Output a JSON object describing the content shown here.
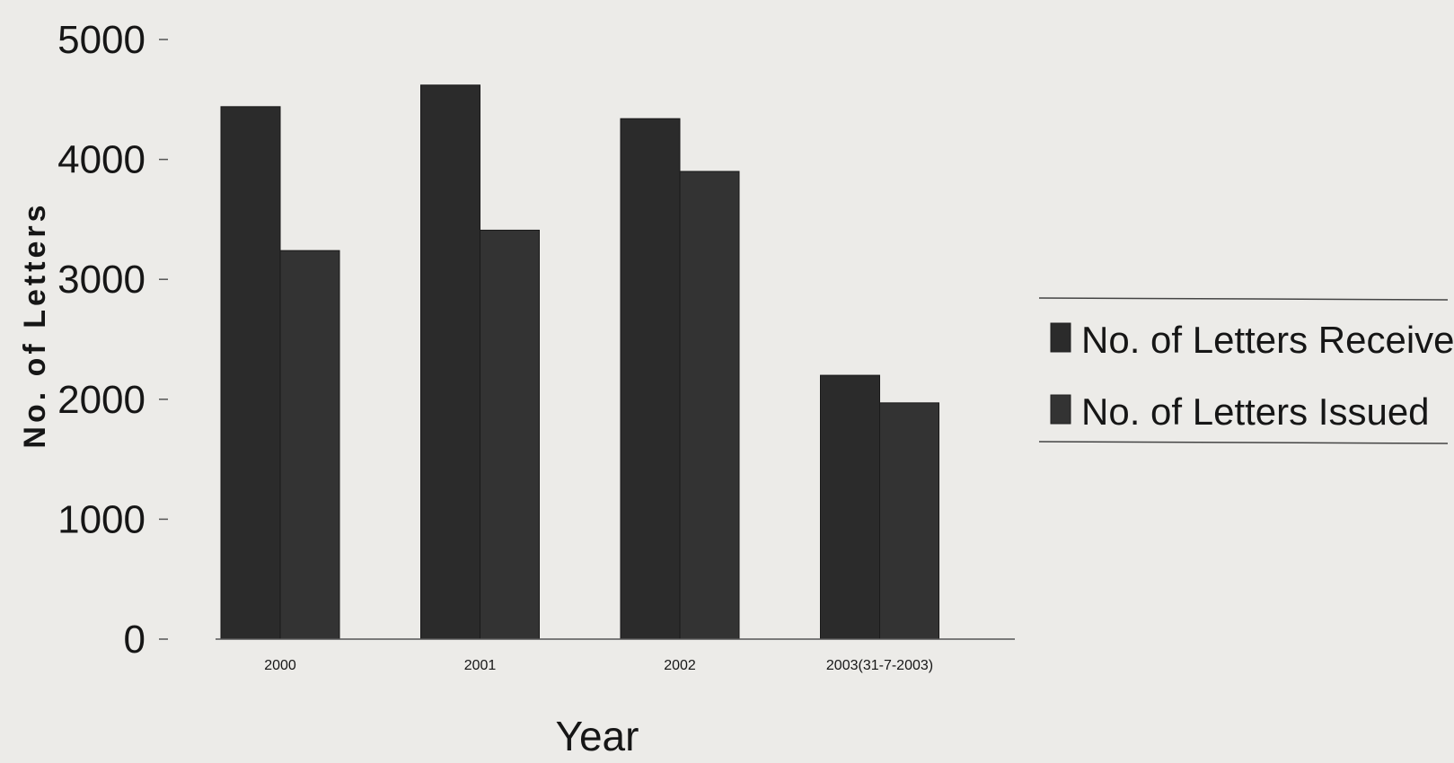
{
  "chart_data": {
    "type": "bar",
    "title": "",
    "xlabel": "Year",
    "ylabel": "No. of Letters",
    "categories": [
      "2000",
      "2001",
      "2002",
      "2003(31-7-2003)"
    ],
    "series": [
      {
        "name": "No. of Letters Received",
        "values": [
          4440,
          4620,
          4340,
          2200
        ]
      },
      {
        "name": "No. of Letters Issued",
        "values": [
          3240,
          3410,
          3900,
          1970
        ]
      }
    ],
    "ylim": [
      0,
      5000
    ],
    "yticks": [
      "0",
      "1000",
      "2000",
      "3000",
      "4000",
      "5000"
    ],
    "grid": false,
    "legend": "right",
    "colors": {
      "received": "#2b2b2b",
      "issued": "#333333",
      "background": "#ecebe8",
      "text": "#161616"
    }
  }
}
